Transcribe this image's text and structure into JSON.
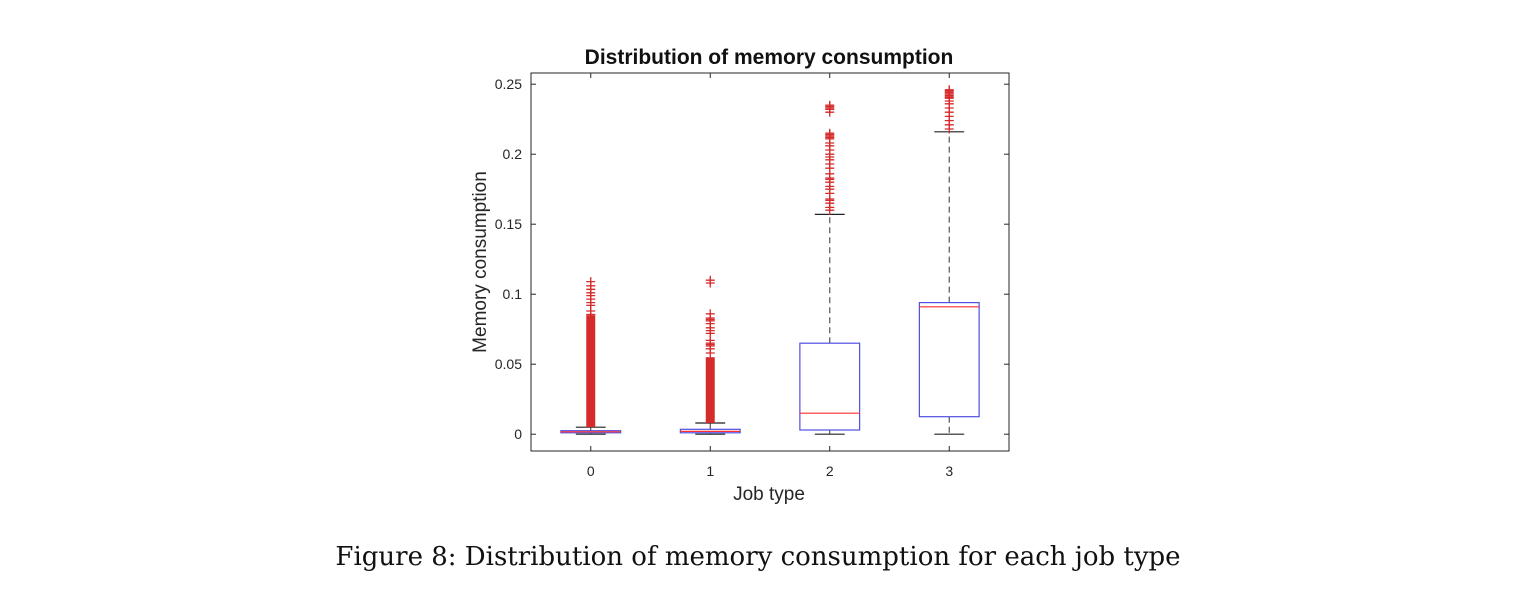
{
  "caption": "Figure 8: Distribution of memory consumption for each job type",
  "chart_data": {
    "type": "box",
    "title": "Distribution of memory consumption",
    "xlabel": "Job type",
    "ylabel": "Memory consumption",
    "categories": [
      "0",
      "1",
      "2",
      "3"
    ],
    "ylim": [
      -0.012,
      0.258
    ],
    "yticks": [
      0,
      0.05,
      0.1,
      0.15,
      0.2,
      0.25
    ],
    "ytick_labels": [
      "0",
      "0.05",
      "0.1",
      "0.15",
      "0.2",
      "0.25"
    ],
    "grid": false,
    "colors": {
      "box": "#4f4fe0",
      "median": "#ff3030",
      "whisker": "#555555",
      "outlier": "#d62b2b",
      "axis": "#262626"
    },
    "boxes": [
      {
        "category": "0",
        "whisker_low": 0.0,
        "q1": 0.001,
        "median": 0.0017,
        "q3": 0.0025,
        "whisker_high": 0.005,
        "outlier_range": [
          0.005,
          0.085
        ],
        "outliers": [
          0.0855,
          0.088,
          0.092,
          0.094,
          0.0965,
          0.099,
          0.101,
          0.1035,
          0.106,
          0.109
        ]
      },
      {
        "category": "1",
        "whisker_low": 0.0,
        "q1": 0.001,
        "median": 0.002,
        "q3": 0.0035,
        "whisker_high": 0.008,
        "outlier_range": [
          0.008,
          0.055
        ],
        "outliers": [
          0.058,
          0.061,
          0.063,
          0.064,
          0.065,
          0.067,
          0.072,
          0.074,
          0.076,
          0.079,
          0.081,
          0.082,
          0.083,
          0.086,
          0.108,
          0.11
        ]
      },
      {
        "category": "2",
        "whisker_low": 0.0,
        "q1": 0.003,
        "median": 0.015,
        "q3": 0.065,
        "whisker_high": 0.157,
        "outliers": [
          0.16,
          0.162,
          0.165,
          0.167,
          0.168,
          0.172,
          0.175,
          0.177,
          0.18,
          0.182,
          0.183,
          0.186,
          0.19,
          0.193,
          0.196,
          0.198,
          0.2,
          0.203,
          0.206,
          0.208,
          0.211,
          0.212,
          0.213,
          0.214,
          0.215,
          0.23,
          0.232,
          0.233,
          0.234,
          0.235
        ]
      },
      {
        "category": "3",
        "whisker_low": 0.0,
        "q1": 0.0125,
        "median": 0.091,
        "q3": 0.094,
        "whisker_high": 0.216,
        "outliers": [
          0.218,
          0.221,
          0.224,
          0.227,
          0.23,
          0.233,
          0.236,
          0.238,
          0.24,
          0.241,
          0.242,
          0.243,
          0.244,
          0.245,
          0.246
        ]
      }
    ]
  }
}
